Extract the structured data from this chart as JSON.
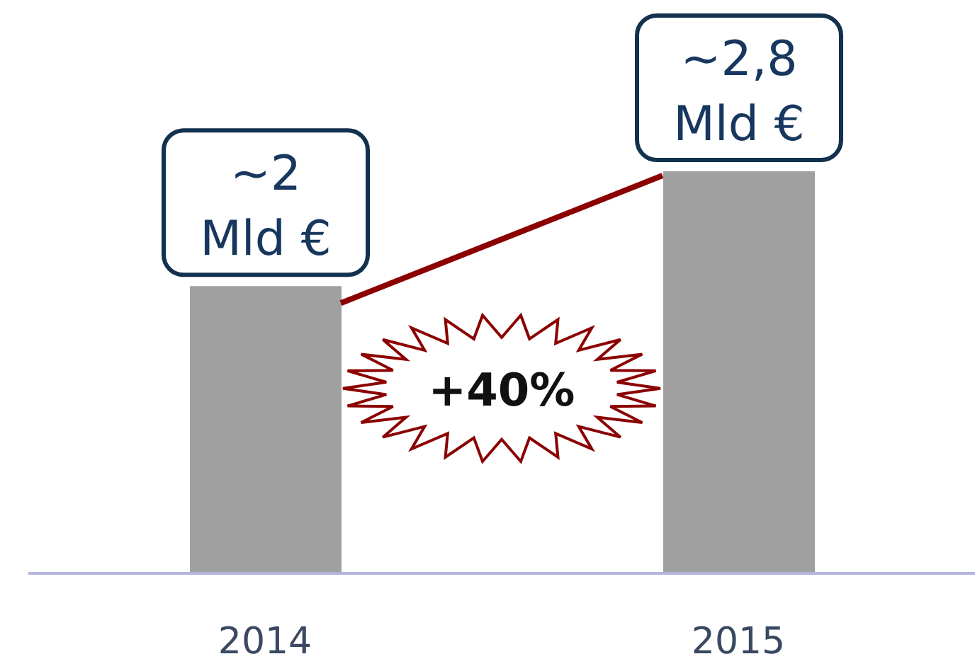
{
  "chart_data": {
    "type": "bar",
    "categories": [
      "2014",
      "2015"
    ],
    "values": [
      2,
      2.8
    ],
    "color": "#a0a0a0",
    "value_labels": [
      "~2 Mld €",
      "~2,8 Mld €"
    ],
    "annotations": [
      "+40%"
    ],
    "tick_labels": "x"
  }
}
